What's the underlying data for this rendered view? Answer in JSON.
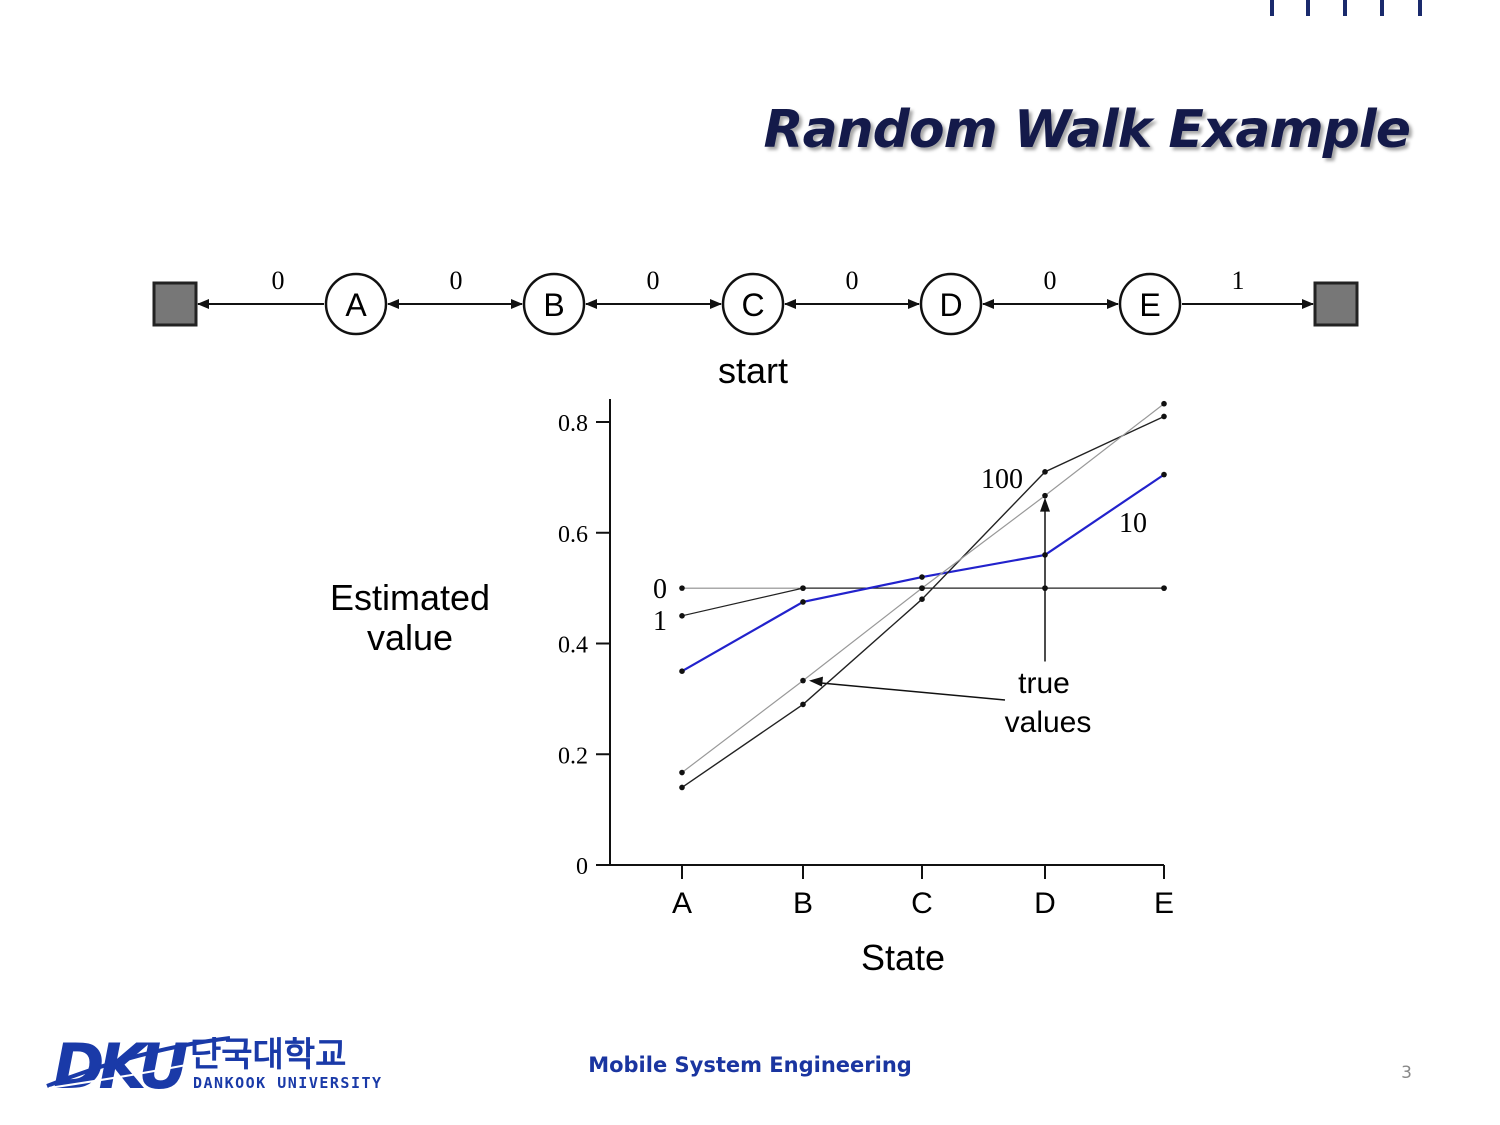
{
  "slide": {
    "title": "Random Walk Example",
    "footer_text": "Mobile System Engineering",
    "page_number": "3"
  },
  "logo": {
    "mark": "DKU",
    "korean": "단국대학교",
    "english": "DANKOOK UNIVERSITY",
    "color": "#1a3aa8"
  },
  "chain": {
    "states": [
      "A",
      "B",
      "C",
      "D",
      "E"
    ],
    "rewards": [
      "0",
      "0",
      "0",
      "0",
      "0",
      "1"
    ],
    "start_label": "start",
    "terminal_color": "#777777"
  },
  "chart_data": {
    "type": "line",
    "categories": [
      "A",
      "B",
      "C",
      "D",
      "E"
    ],
    "xlabel": "State",
    "ylabel": "Estimated value",
    "ylim": [
      0,
      0.8
    ],
    "yticks": [
      "0",
      "0.2",
      "0.4",
      "0.6",
      "0.8"
    ],
    "series": [
      {
        "name": "0",
        "values": [
          0.5,
          0.5,
          0.5,
          0.5,
          0.5
        ],
        "color": "#555555",
        "width": 0.8
      },
      {
        "name": "1",
        "values": [
          0.45,
          0.5,
          0.5,
          0.5,
          0.5
        ],
        "color": "#222222",
        "width": 1.2
      },
      {
        "name": "10",
        "values": [
          0.35,
          0.475,
          0.52,
          0.56,
          0.705
        ],
        "color": "#2222cc",
        "width": 2.2
      },
      {
        "name": "100",
        "values": [
          0.14,
          0.29,
          0.48,
          0.71,
          0.81
        ],
        "color": "#222222",
        "width": 1.4
      },
      {
        "name": "true values",
        "values": [
          0.167,
          0.333,
          0.5,
          0.667,
          0.833
        ],
        "color": "#999999",
        "width": 1.2
      }
    ],
    "annotations": [
      "true",
      "values"
    ],
    "grid": false
  }
}
